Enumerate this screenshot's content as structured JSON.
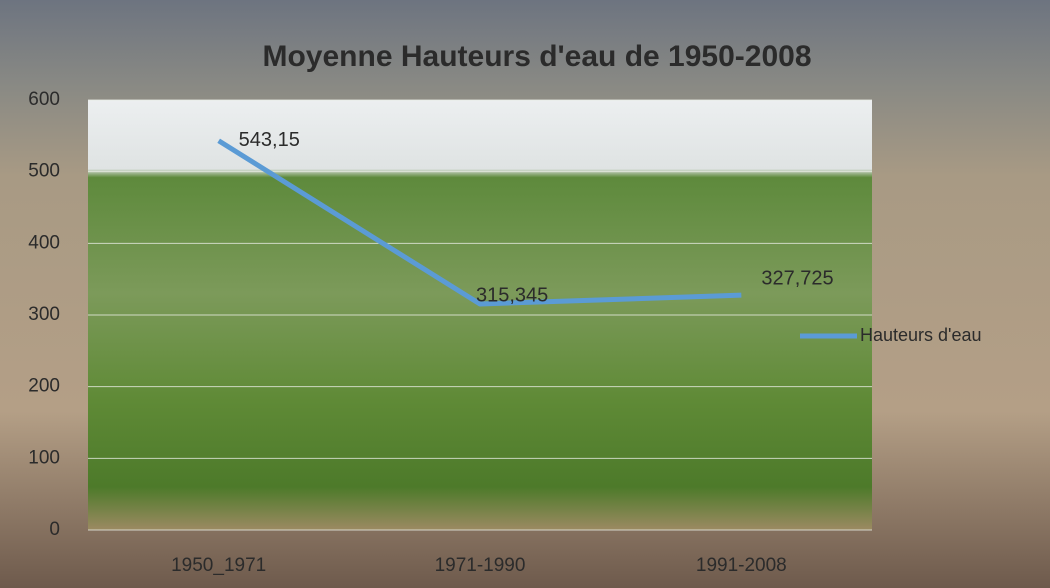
{
  "chart_data": {
    "type": "line",
    "title": "Moyenne Hauteurs d'eau de 1950-2008",
    "categories": [
      "1950_1971",
      "1971-1990",
      "1991-2008"
    ],
    "series": [
      {
        "name": "Hauteurs d'eau",
        "color": "#5b9bd5",
        "values": [
          543.15,
          315.345,
          327.725
        ],
        "value_labels": [
          "543,15",
          "315,345",
          "327,725"
        ]
      }
    ],
    "ylim": [
      0,
      600
    ],
    "yticks": [
      0,
      100,
      200,
      300,
      400,
      500,
      600
    ],
    "grid": true,
    "legend": "right"
  }
}
